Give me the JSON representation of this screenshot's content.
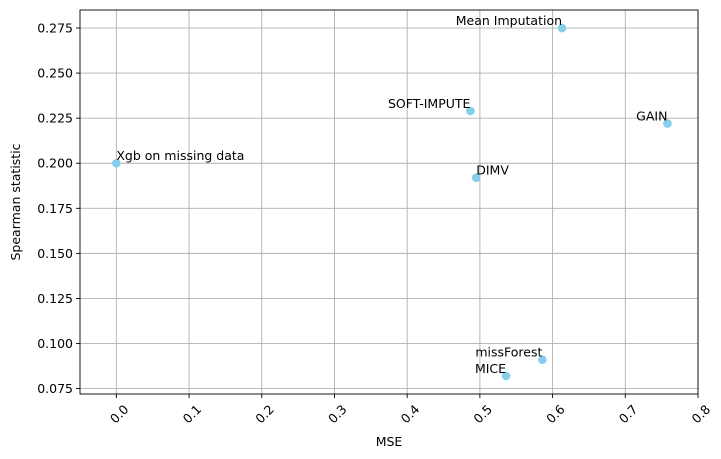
{
  "chart_data": {
    "type": "scatter",
    "title": "",
    "xlabel": "MSE",
    "ylabel": "Spearman statistic",
    "xlim": [
      -0.05,
      0.8
    ],
    "ylim": [
      0.072,
      0.285
    ],
    "xticks": [
      0.0,
      0.1,
      0.2,
      0.3,
      0.4,
      0.5,
      0.6,
      0.7,
      0.8
    ],
    "xtick_labels": [
      "0.0",
      "0.1",
      "0.2",
      "0.3",
      "0.4",
      "0.5",
      "0.6",
      "0.7",
      "0.8"
    ],
    "yticks": [
      0.075,
      0.1,
      0.125,
      0.15,
      0.175,
      0.2,
      0.225,
      0.25,
      0.275
    ],
    "ytick_labels": [
      "0.075",
      "0.100",
      "0.125",
      "0.150",
      "0.175",
      "0.200",
      "0.225",
      "0.250",
      "0.275"
    ],
    "grid": true,
    "marker_color": "#87ceeb",
    "points": [
      {
        "label": "Xgb on missing data",
        "x": 0.0,
        "y": 0.2,
        "label_align": "left"
      },
      {
        "label": "Mean Imputation",
        "x": 0.613,
        "y": 0.275,
        "label_align": "right"
      },
      {
        "label": "SOFT-IMPUTE",
        "x": 0.487,
        "y": 0.229,
        "label_align": "right"
      },
      {
        "label": "GAIN",
        "x": 0.758,
        "y": 0.222,
        "label_align": "right"
      },
      {
        "label": "DIMV",
        "x": 0.495,
        "y": 0.192,
        "label_align": "left"
      },
      {
        "label": "missForest",
        "x": 0.586,
        "y": 0.091,
        "label_align": "right"
      },
      {
        "label": "MICE",
        "x": 0.536,
        "y": 0.082,
        "label_align": "right"
      }
    ]
  }
}
